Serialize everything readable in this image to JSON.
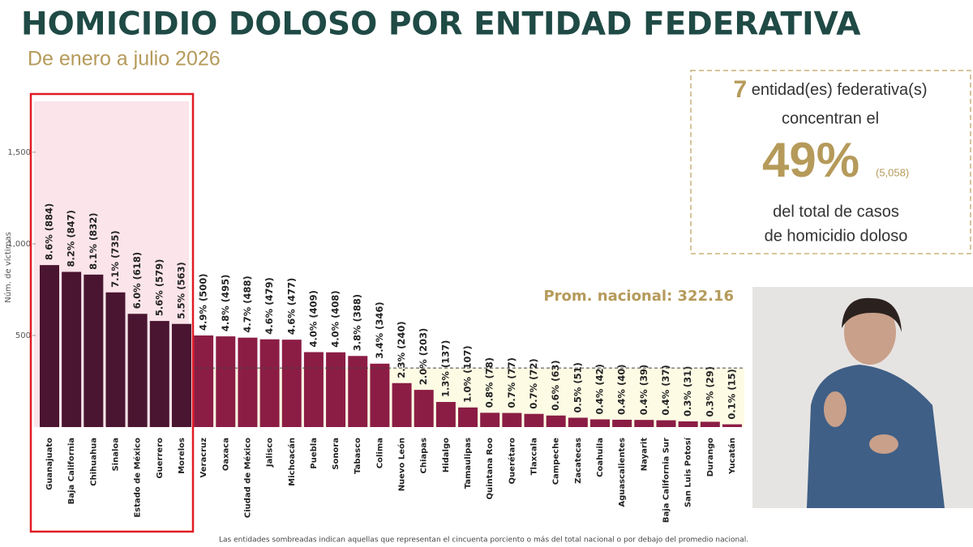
{
  "header": {
    "title": "HOMICIDIO DOLOSO POR ENTIDAD FEDERATIVA",
    "subtitle": "De enero a julio 2026"
  },
  "callout": {
    "count": 7,
    "line1": "entidad(es) federativa(s)",
    "line2": "concentran el",
    "share": "49%",
    "total": "(5,058)",
    "line3": "del total de casos",
    "line4": "de homicidio doloso"
  },
  "footnote": "Las entidades sombreadas indican aquellas que representan el cincuenta porciento o más del total nacional o por debajo del promedio nacional.",
  "chart_data": {
    "type": "bar",
    "y_label": "Núm. de víctimas",
    "categories": [
      "Guanajuato",
      "Baja California",
      "Chihuahua",
      "Sinaloa",
      "Estado de México",
      "Guerrero",
      "Morelos",
      "Veracruz",
      "Oaxaca",
      "Ciudad de México",
      "Jalisco",
      "Michoacán",
      "Puebla",
      "Sonora",
      "Tabasco",
      "Colima",
      "Nuevo León",
      "Chiapas",
      "Hidalgo",
      "Tamaulipas",
      "Quintana Roo",
      "Querétaro",
      "Tlaxcala",
      "Campeche",
      "Zacatecas",
      "Coahuila",
      "Aguascalientes",
      "Nayarit",
      "Baja California Sur",
      "San Luis Potosí",
      "Durango",
      "Yucatán"
    ],
    "values": [
      884,
      847,
      832,
      735,
      618,
      579,
      563,
      500,
      495,
      488,
      479,
      477,
      409,
      408,
      388,
      346,
      240,
      203,
      137,
      107,
      78,
      77,
      72,
      63,
      51,
      42,
      40,
      39,
      37,
      31,
      29,
      15
    ],
    "value_labels": [
      "8.6% (884)",
      "8.2% (847)",
      "8.1% (832)",
      "7.1% (735)",
      "6.0% (618)",
      "5.6% (579)",
      "5.5% (563)",
      "4.9% (500)",
      "4.8% (495)",
      "4.7% (488)",
      "4.6% (479)",
      "4.6% (477)",
      "4.0% (409)",
      "4.0% (408)",
      "3.8% (388)",
      "3.4% (346)",
      "2.3% (240)",
      "2.0% (203)",
      "1.3% (137)",
      "1.0% (107)",
      "0.8% (78)",
      "0.7% (77)",
      "0.7% (72)",
      "0.6% (63)",
      "0.5% (51)",
      "0.4% (42)",
      "0.4% (40)",
      "0.4% (39)",
      "0.4% (37)",
      "0.3% (31)",
      "0.3% (29)",
      "0.1% (15)"
    ],
    "color": "#8b1d45",
    "highlight_color": "#4a1530",
    "average": 322.16,
    "average_label": "Prom. nacional: 322.16",
    "ylim": [
      0,
      1800
    ],
    "yticks": [
      500,
      {
        "value": 1000,
        "label": "1,000"
      },
      {
        "value": 1500,
        "label": "1,500"
      }
    ]
  }
}
